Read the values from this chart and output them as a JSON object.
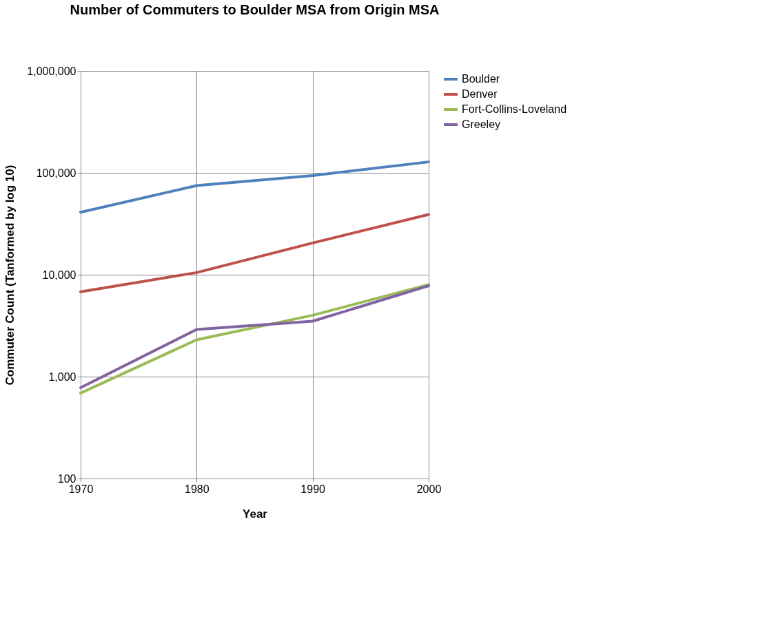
{
  "chart_data": {
    "type": "line",
    "title": "Number of Commuters to Boulder MSA from Origin MSA",
    "xlabel": "Year",
    "ylabel": "Commuter Count (Tanformed by log 10)",
    "x": [
      1970,
      1980,
      1990,
      2000
    ],
    "series": [
      {
        "name": "Boulder",
        "color": "#4f81bd",
        "values": [
          41000,
          75000,
          94000,
          128000
        ]
      },
      {
        "name": "Denver",
        "color": "#c0504d",
        "values": [
          6800,
          10500,
          20500,
          39000
        ]
      },
      {
        "name": "Fort-Collins-Loveland",
        "color": "#9bbb59",
        "values": [
          690,
          2300,
          4000,
          8000
        ]
      },
      {
        "name": "Greeley",
        "color": "#8064a2",
        "values": [
          780,
          2900,
          3500,
          7800
        ]
      }
    ],
    "xlim": [
      1970,
      2000
    ],
    "xticks": [
      1970,
      1980,
      1990,
      2000
    ],
    "ylim": [
      100,
      1000000
    ],
    "yticks": [
      100,
      {
        "value": 1000,
        "label": "1,000"
      },
      {
        "value": 10000,
        "label": "10,000"
      },
      {
        "value": 100000,
        "label": "100,000"
      },
      {
        "value": 1000000,
        "label": "1,000,000"
      }
    ],
    "log": true,
    "grid": true,
    "legend": "right"
  }
}
